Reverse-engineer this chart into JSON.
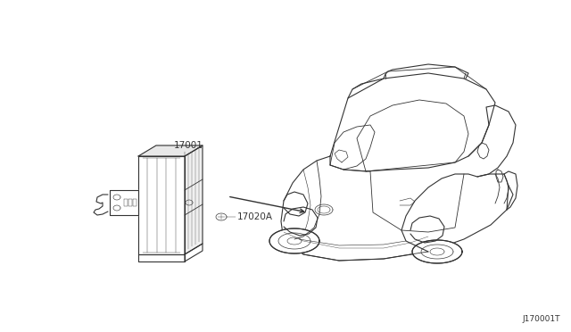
{
  "bg_color": "#ffffff",
  "line_color": "#333333",
  "label_color": "#333333",
  "diagram_id": "J170001T",
  "fig_width": 6.4,
  "fig_height": 3.72,
  "dpi": 100
}
